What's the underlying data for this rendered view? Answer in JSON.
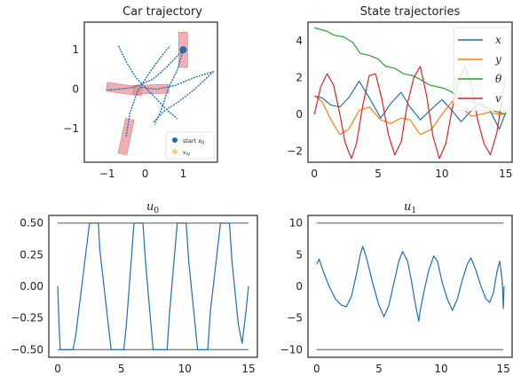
{
  "chart_data": [
    {
      "type": "scatter",
      "title": "Car trajectory",
      "xlim": [
        -1.6,
        1.9
      ],
      "ylim": [
        -1.85,
        1.7
      ],
      "xticks": [
        -1,
        0,
        1
      ],
      "yticks": [
        -1,
        0,
        1
      ],
      "grid": false,
      "legend": {
        "position": "bottom-right",
        "entries": [
          {
            "label": "start x",
            "sub": "0",
            "color": "#1f6fb4"
          },
          {
            "label": "x",
            "sub": "N",
            "color": "#ffcc8a"
          }
        ]
      },
      "start_point": {
        "x": 1.0,
        "y": 1.0
      },
      "car_boxes": [
        {
          "x": 1.0,
          "y": 1.0,
          "angle_deg": 90
        },
        {
          "x": -0.55,
          "y": 0.0,
          "angle_deg": -8
        },
        {
          "x": 0.15,
          "y": 0.0,
          "angle_deg": 2
        },
        {
          "x": -0.5,
          "y": -1.2,
          "angle_deg": 78
        }
      ],
      "trajectories": [
        [
          [
            1.0,
            1.0
          ],
          [
            0.55,
            0.55
          ],
          [
            0.2,
            0.25
          ],
          [
            -0.3,
            0.05
          ],
          [
            -0.7,
            0.0
          ],
          [
            -1.0,
            -0.02
          ]
        ],
        [
          [
            1.0,
            1.0
          ],
          [
            0.85,
            0.5
          ],
          [
            0.6,
            0.0
          ],
          [
            0.45,
            -0.45
          ],
          [
            0.25,
            -0.9
          ]
        ],
        [
          [
            -0.7,
            1.1
          ],
          [
            -0.5,
            0.7
          ],
          [
            -0.25,
            0.3
          ],
          [
            0.0,
            0.05
          ],
          [
            0.3,
            -0.25
          ],
          [
            0.6,
            -0.55
          ],
          [
            0.85,
            -0.75
          ]
        ],
        [
          [
            -0.5,
            -1.2
          ],
          [
            -0.4,
            -0.6
          ],
          [
            -0.2,
            -0.05
          ],
          [
            0.1,
            0.4
          ],
          [
            0.4,
            0.8
          ],
          [
            0.65,
            1.1
          ]
        ],
        [
          [
            -0.1,
            0.05
          ],
          [
            0.3,
            0.0
          ],
          [
            0.8,
            0.1
          ],
          [
            1.3,
            0.3
          ],
          [
            1.8,
            0.45
          ]
        ],
        [
          [
            1.8,
            0.45
          ],
          [
            1.3,
            0.0
          ],
          [
            0.9,
            -0.3
          ],
          [
            0.5,
            -0.55
          ],
          [
            0.2,
            -0.85
          ]
        ]
      ]
    },
    {
      "type": "line",
      "title": "State trajectories",
      "xlim": [
        -0.5,
        15.5
      ],
      "ylim": [
        -2.6,
        5.0
      ],
      "xticks": [
        0,
        5,
        10,
        15
      ],
      "yticks": [
        -2,
        0,
        2,
        4
      ],
      "legend": {
        "position": "top-right"
      },
      "series": [
        {
          "name": "x",
          "color": "#1f6fb4",
          "values": [
            [
              0,
              1.0
            ],
            [
              0.6,
              0.9
            ],
            [
              1.3,
              0.5
            ],
            [
              2,
              0.4
            ],
            [
              2.7,
              0.9
            ],
            [
              3.5,
              1.8
            ],
            [
              4.3,
              0.9
            ],
            [
              5.2,
              -0.2
            ],
            [
              6,
              0.6
            ],
            [
              6.8,
              1.2
            ],
            [
              7.5,
              0.4
            ],
            [
              8.3,
              -0.3
            ],
            [
              9.2,
              0.3
            ],
            [
              10,
              0.8
            ],
            [
              10.8,
              0.2
            ],
            [
              11.5,
              -0.4
            ],
            [
              12.3,
              0.2
            ],
            [
              13,
              0.6
            ],
            [
              13.7,
              0.3
            ],
            [
              14.5,
              -0.8
            ],
            [
              15,
              0.1
            ]
          ]
        },
        {
          "name": "y",
          "color": "#ff7f0e",
          "values": [
            [
              0,
              1.0
            ],
            [
              0.6,
              0.7
            ],
            [
              1.3,
              -0.3
            ],
            [
              2,
              -1.1
            ],
            [
              2.7,
              -0.8
            ],
            [
              3.5,
              0.2
            ],
            [
              4.3,
              0.4
            ],
            [
              5.2,
              -0.3
            ],
            [
              6,
              -0.5
            ],
            [
              6.8,
              -0.2
            ],
            [
              7.5,
              -0.3
            ],
            [
              8.3,
              -1.1
            ],
            [
              9.2,
              -0.8
            ],
            [
              10,
              0.0
            ],
            [
              10.8,
              0.7
            ],
            [
              11.5,
              0.4
            ],
            [
              12.3,
              -0.1
            ],
            [
              13,
              0.0
            ],
            [
              13.7,
              0.1
            ],
            [
              14.5,
              0.0
            ],
            [
              15,
              0.0
            ]
          ]
        },
        {
          "name": "θ",
          "color": "#2ca02c",
          "values": [
            [
              0,
              4.7
            ],
            [
              1,
              4.5
            ],
            [
              1.5,
              4.3
            ],
            [
              2.3,
              4.2
            ],
            [
              3,
              3.9
            ],
            [
              3.6,
              3.3
            ],
            [
              4.3,
              3.2
            ],
            [
              5,
              3.0
            ],
            [
              5.6,
              2.6
            ],
            [
              6.3,
              2.5
            ],
            [
              7,
              2.2
            ],
            [
              7.7,
              2.1
            ],
            [
              8.3,
              1.9
            ],
            [
              9,
              1.6
            ],
            [
              9.6,
              1.5
            ],
            [
              10.2,
              1.4
            ],
            [
              10.8,
              1.2
            ],
            [
              11.5,
              0.8
            ],
            [
              12.3,
              0.7
            ],
            [
              13,
              0.5
            ],
            [
              14,
              0.2
            ],
            [
              15,
              0.0
            ]
          ]
        },
        {
          "name": "v",
          "color": "#d62728",
          "values": [
            [
              0,
              0.0
            ],
            [
              0.5,
              1.5
            ],
            [
              1,
              2.2
            ],
            [
              1.5,
              1.6
            ],
            [
              2,
              0.0
            ],
            [
              2.4,
              -1.5
            ],
            [
              2.9,
              -2.4
            ],
            [
              3.3,
              -1.6
            ],
            [
              3.8,
              0.5
            ],
            [
              4.3,
              2.1
            ],
            [
              4.8,
              2.2
            ],
            [
              5.3,
              0.8
            ],
            [
              5.8,
              -1.1
            ],
            [
              6.3,
              -2.2
            ],
            [
              6.8,
              -1.5
            ],
            [
              7.3,
              0.6
            ],
            [
              7.8,
              2.0
            ],
            [
              8.3,
              2.6
            ],
            [
              8.8,
              1.0
            ],
            [
              9.3,
              -1.2
            ],
            [
              9.8,
              -2.4
            ],
            [
              10.3,
              -1.6
            ],
            [
              10.8,
              0.3
            ],
            [
              11.3,
              1.8
            ],
            [
              11.8,
              2.6
            ],
            [
              12.3,
              1.6
            ],
            [
              12.8,
              -0.3
            ],
            [
              13.3,
              -1.6
            ],
            [
              13.8,
              -2.2
            ],
            [
              14.3,
              -1.0
            ],
            [
              14.8,
              1.2
            ],
            [
              15,
              2.0
            ]
          ]
        }
      ]
    },
    {
      "type": "line",
      "title": "u",
      "title_sub": "0",
      "xlim": [
        -0.7,
        15.7
      ],
      "ylim": [
        -0.56,
        0.56
      ],
      "xticks": [
        0,
        5,
        10,
        15
      ],
      "yticks": [
        -0.5,
        -0.25,
        0.0,
        0.25,
        0.5
      ],
      "ytick_labels": [
        "−0.50",
        "−0.25",
        "0.00",
        "0.25",
        "0.50"
      ],
      "bounds": [
        -0.5,
        0.5
      ],
      "bound_color": "#7f7f7f",
      "series": [
        {
          "name": "",
          "color": "#1f6fb4",
          "values": [
            [
              0,
              0.0
            ],
            [
              0.1,
              -0.3
            ],
            [
              0.2,
              -0.5
            ],
            [
              1.2,
              -0.5
            ],
            [
              1.4,
              -0.4
            ],
            [
              2.5,
              0.5
            ],
            [
              3.2,
              0.5
            ],
            [
              3.3,
              0.3
            ],
            [
              4.2,
              -0.5
            ],
            [
              5.2,
              -0.5
            ],
            [
              5.4,
              -0.3
            ],
            [
              6.0,
              0.5
            ],
            [
              6.7,
              0.5
            ],
            [
              6.9,
              0.2
            ],
            [
              7.5,
              -0.5
            ],
            [
              8.6,
              -0.5
            ],
            [
              8.8,
              -0.2
            ],
            [
              9.4,
              0.5
            ],
            [
              10.1,
              0.5
            ],
            [
              10.3,
              0.2
            ],
            [
              11.0,
              -0.5
            ],
            [
              11.8,
              -0.5
            ],
            [
              12.0,
              -0.2
            ],
            [
              12.8,
              0.5
            ],
            [
              13.5,
              0.5
            ],
            [
              13.7,
              0.2
            ],
            [
              14.2,
              -0.3
            ],
            [
              14.5,
              -0.45
            ],
            [
              14.8,
              -0.2
            ],
            [
              15.0,
              0.0
            ]
          ]
        }
      ]
    },
    {
      "type": "line",
      "title": "u",
      "title_sub": "1",
      "xlim": [
        -0.7,
        15.7
      ],
      "ylim": [
        -11.2,
        11.2
      ],
      "xticks": [
        0,
        5,
        10,
        15
      ],
      "yticks": [
        -10,
        -5,
        0,
        5,
        10
      ],
      "ytick_labels": [
        "−10",
        "−5",
        "0",
        "5",
        "10"
      ],
      "bounds": [
        -10,
        10
      ],
      "bound_color": "#7f7f7f",
      "series": [
        {
          "name": "",
          "color": "#1f6fb4",
          "values": [
            [
              0,
              3.5
            ],
            [
              0.2,
              4.3
            ],
            [
              0.5,
              2.5
            ],
            [
              1,
              0.0
            ],
            [
              1.5,
              -2.0
            ],
            [
              2,
              -3.0
            ],
            [
              2.4,
              -3.2
            ],
            [
              2.8,
              -1.5
            ],
            [
              3.2,
              2.0
            ],
            [
              3.5,
              5.0
            ],
            [
              3.7,
              6.3
            ],
            [
              4,
              4.5
            ],
            [
              4.5,
              0.5
            ],
            [
              5,
              -3.0
            ],
            [
              5.4,
              -4.8
            ],
            [
              5.8,
              -3.0
            ],
            [
              6.2,
              0.5
            ],
            [
              6.6,
              4.0
            ],
            [
              6.9,
              5.5
            ],
            [
              7.3,
              4.0
            ],
            [
              7.6,
              1.0
            ],
            [
              7.9,
              -2.5
            ],
            [
              8.1,
              -4.5
            ],
            [
              8.2,
              -5.5
            ],
            [
              8.3,
              -4.0
            ],
            [
              8.6,
              -1.0
            ],
            [
              9,
              2.5
            ],
            [
              9.4,
              4.8
            ],
            [
              9.7,
              4.0
            ],
            [
              10.1,
              0.5
            ],
            [
              10.5,
              -2.0
            ],
            [
              10.9,
              -3.8
            ],
            [
              11.3,
              -2.0
            ],
            [
              11.7,
              1.0
            ],
            [
              12.1,
              3.5
            ],
            [
              12.4,
              4.5
            ],
            [
              12.8,
              2.5
            ],
            [
              13.2,
              0.0
            ],
            [
              13.6,
              -2.0
            ],
            [
              13.9,
              -2.5
            ],
            [
              14.2,
              -1.0
            ],
            [
              14.5,
              2.5
            ],
            [
              14.7,
              4.0
            ],
            [
              14.9,
              1.0
            ],
            [
              15,
              -3.5
            ],
            [
              15.05,
              0.0
            ]
          ]
        }
      ]
    }
  ]
}
